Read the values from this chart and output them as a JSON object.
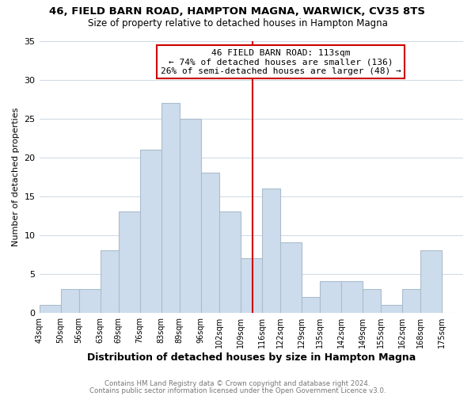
{
  "title1": "46, FIELD BARN ROAD, HAMPTON MAGNA, WARWICK, CV35 8TS",
  "title2": "Size of property relative to detached houses in Hampton Magna",
  "xlabel": "Distribution of detached houses by size in Hampton Magna",
  "ylabel": "Number of detached properties",
  "bar_values": [
    1,
    3,
    3,
    8,
    13,
    21,
    27,
    25,
    18,
    13,
    7,
    16,
    9,
    2,
    4,
    4,
    3,
    1,
    3,
    8
  ],
  "bar_edges": [
    43,
    50,
    56,
    63,
    69,
    76,
    83,
    89,
    96,
    102,
    109,
    116,
    122,
    129,
    135,
    142,
    149,
    155,
    162,
    168,
    175
  ],
  "tick_labels": [
    "43sqm",
    "50sqm",
    "56sqm",
    "63sqm",
    "69sqm",
    "76sqm",
    "83sqm",
    "89sqm",
    "96sqm",
    "102sqm",
    "109sqm",
    "116sqm",
    "122sqm",
    "129sqm",
    "135sqm",
    "142sqm",
    "149sqm",
    "155sqm",
    "162sqm",
    "168sqm",
    "175sqm"
  ],
  "bar_color": "#cddcec",
  "bar_edgecolor": "#aabccc",
  "vline_x": 113,
  "vline_color": "#cc0000",
  "ylim": [
    0,
    35
  ],
  "yticks": [
    0,
    5,
    10,
    15,
    20,
    25,
    30,
    35
  ],
  "annotation_title": "46 FIELD BARN ROAD: 113sqm",
  "annotation_line1": "← 74% of detached houses are smaller (136)",
  "annotation_line2": "26% of semi-detached houses are larger (48) →",
  "annotation_box_edgecolor": "#cc0000",
  "footer1": "Contains HM Land Registry data © Crown copyright and database right 2024.",
  "footer2": "Contains public sector information licensed under the Open Government Licence v3.0.",
  "background_color": "#ffffff",
  "grid_color": "#d0dce8"
}
